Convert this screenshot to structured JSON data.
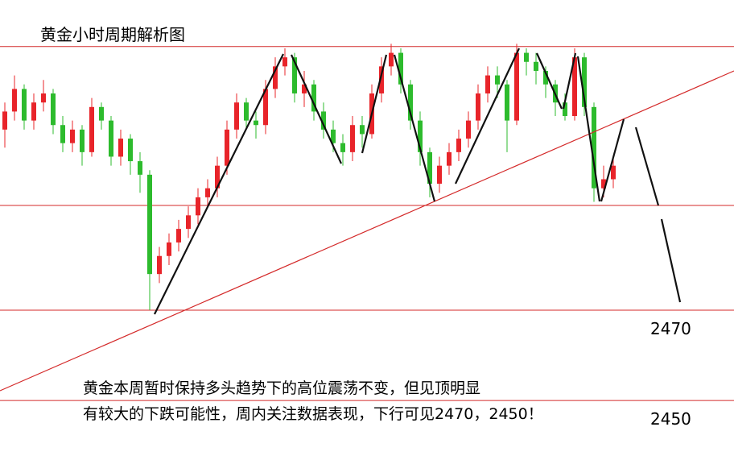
{
  "chart_data": {
    "type": "candlestick",
    "title": "黄金小时周期解析图",
    "annotation": [
      "黄金本周暂时保持多头趋势下的高位震荡不变，但见顶明显",
      "有较大的下跌可能性，周内关注数据表现，下行可见2470，2450！"
    ],
    "up_color": "#e8242a",
    "down_color": "#2dbb2d",
    "level_color": "#d42a2a",
    "ylim": [
      2437.7,
      2538.7
    ],
    "levels": [
      2528.4,
      2493.2,
      {
        "value": 2470,
        "label": "2470"
      },
      {
        "value": 2450,
        "label": "2450"
      }
    ],
    "open": [
      2510,
      2514,
      2519,
      2512,
      2516,
      2518,
      2511,
      2507,
      2510,
      2505,
      2515,
      2512,
      2504,
      2508,
      2503,
      2500,
      2478,
      2482,
      2485,
      2488,
      2491,
      2495,
      2497,
      2502,
      2510,
      2516,
      2512,
      2511,
      2519,
      2524,
      2526,
      2518,
      2520,
      2514,
      2510,
      2507,
      2505,
      2511,
      2509,
      2518,
      2524,
      2527,
      2520,
      2512,
      2505,
      2498,
      2502,
      2505,
      2508,
      2512,
      2518,
      2522,
      2520,
      2512,
      2527,
      2525,
      2523,
      2520,
      2516,
      2513,
      2526,
      2515,
      2497,
      2499
    ],
    "close": [
      2514,
      2519,
      2512,
      2516,
      2518,
      2511,
      2507,
      2510,
      2505,
      2515,
      2512,
      2504,
      2508,
      2503,
      2500,
      2478,
      2482,
      2485,
      2488,
      2491,
      2495,
      2497,
      2502,
      2510,
      2516,
      2512,
      2511,
      2519,
      2524,
      2526,
      2518,
      2520,
      2514,
      2510,
      2507,
      2505,
      2511,
      2509,
      2518,
      2524,
      2527,
      2520,
      2512,
      2505,
      2498,
      2502,
      2505,
      2508,
      2512,
      2518,
      2522,
      2520,
      2512,
      2527,
      2525,
      2523,
      2520,
      2516,
      2513,
      2526,
      2515,
      2497,
      2499,
      2502
    ],
    "high": [
      2516,
      2522,
      2520,
      2518,
      2521,
      2519,
      2513,
      2512,
      2511,
      2517,
      2516,
      2513,
      2510,
      2509,
      2505,
      2501,
      2484,
      2487,
      2490,
      2493,
      2497,
      2499,
      2504,
      2512,
      2518,
      2517,
      2514,
      2521,
      2526,
      2528,
      2527,
      2523,
      2521,
      2516,
      2512,
      2509,
      2513,
      2513,
      2520,
      2526,
      2529,
      2528,
      2521,
      2514,
      2506,
      2504,
      2507,
      2510,
      2514,
      2520,
      2524,
      2524,
      2521,
      2529,
      2528,
      2527,
      2524,
      2521,
      2518,
      2528,
      2527,
      2516,
      2502,
      2504
    ],
    "low": [
      2506,
      2512,
      2510,
      2510,
      2514,
      2509,
      2505,
      2505,
      2502,
      2504,
      2510,
      2502,
      2502,
      2500,
      2496,
      2470,
      2476,
      2480,
      2483,
      2486,
      2489,
      2493,
      2495,
      2500,
      2508,
      2510,
      2508,
      2509,
      2517,
      2522,
      2516,
      2515,
      2512,
      2508,
      2505,
      2502,
      2503,
      2506,
      2508,
      2516,
      2522,
      2518,
      2510,
      2502,
      2495,
      2496,
      2500,
      2503,
      2506,
      2510,
      2516,
      2517,
      2505,
      2511,
      2522,
      2520,
      2517,
      2513,
      2512,
      2512,
      2513,
      2494,
      2495,
      2497
    ]
  }
}
